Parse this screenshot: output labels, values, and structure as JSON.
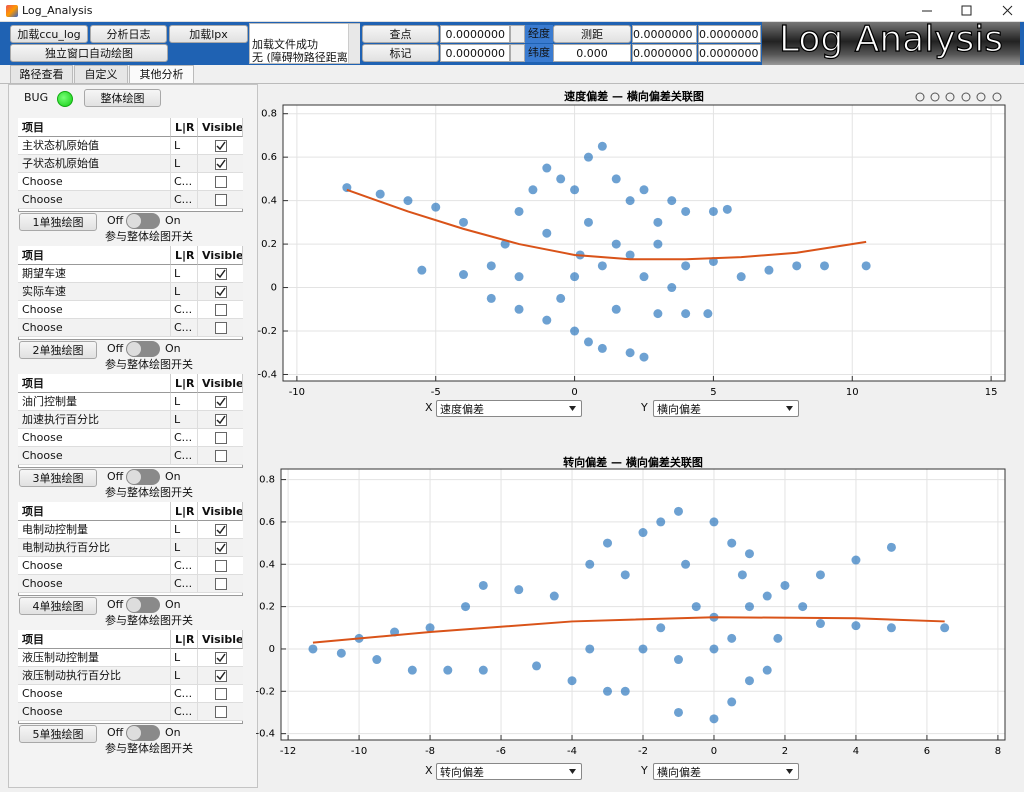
{
  "window": {
    "title": "Log_Analysis"
  },
  "toolbar": {
    "buttons": [
      "加载ccu_log",
      "分析日志",
      "加载lpx",
      "独立窗口自动绘图"
    ],
    "status": [
      "加载文件成功",
      "无 (障碍物路径距离"
    ],
    "query": {
      "label": "查点",
      "value": "0.0000000"
    },
    "mark": {
      "label": "标记",
      "value": "0.0000000"
    },
    "lon_label": "经度",
    "lat_label": "纬度",
    "measure": {
      "label": "测距",
      "value": "0.000"
    },
    "cells": [
      "0.0000000",
      "0.0000000",
      "0.0000000",
      "0.0000000"
    ],
    "logo": "Log Analysis"
  },
  "tabs": {
    "items": [
      "路径查看",
      "自定义",
      "其他分析"
    ],
    "selected": 2
  },
  "panel": {
    "bug_label": "BUG",
    "overall_button": "整体绘图",
    "groups": [
      {
        "headers": [
          "项目",
          "L|R",
          "Visible"
        ],
        "rows": [
          [
            "主状态机原始值",
            "L",
            true
          ],
          [
            "子状态机原始值",
            "L",
            true
          ],
          [
            "Choose",
            "C...",
            false
          ],
          [
            "Choose",
            "C...",
            false
          ]
        ],
        "button": "1单独绘图",
        "switch_off": "Off",
        "switch_on": "On",
        "caption": "参与整体绘图开关"
      },
      {
        "headers": [
          "项目",
          "L|R",
          "Visible"
        ],
        "rows": [
          [
            "期望车速",
            "L",
            true
          ],
          [
            "实际车速",
            "L",
            true
          ],
          [
            "Choose",
            "C...",
            false
          ],
          [
            "Choose",
            "C...",
            false
          ]
        ],
        "button": "2单独绘图",
        "switch_off": "Off",
        "switch_on": "On",
        "caption": "参与整体绘图开关"
      },
      {
        "headers": [
          "项目",
          "L|R",
          "Visible"
        ],
        "rows": [
          [
            "油门控制量",
            "L",
            true
          ],
          [
            "加速执行百分比",
            "L",
            true
          ],
          [
            "Choose",
            "C...",
            false
          ],
          [
            "Choose",
            "C...",
            false
          ]
        ],
        "button": "3单独绘图",
        "switch_off": "Off",
        "switch_on": "On",
        "caption": "参与整体绘图开关"
      },
      {
        "headers": [
          "项目",
          "L|R",
          "Visible"
        ],
        "rows": [
          [
            "电制动控制量",
            "L",
            true
          ],
          [
            "电制动执行百分比",
            "L",
            true
          ],
          [
            "Choose",
            "C...",
            false
          ],
          [
            "Choose",
            "C...",
            false
          ]
        ],
        "button": "4单独绘图",
        "switch_off": "Off",
        "switch_on": "On",
        "caption": "参与整体绘图开关"
      },
      {
        "headers": [
          "项目",
          "L|R",
          "Visible"
        ],
        "rows": [
          [
            "液压制动控制量",
            "L",
            true
          ],
          [
            "液压制动执行百分比",
            "L",
            true
          ],
          [
            "Choose",
            "C...",
            false
          ],
          [
            "Choose",
            "C...",
            false
          ]
        ],
        "button": "5单独绘图",
        "switch_off": "Off",
        "switch_on": "On",
        "caption": "参与整体绘图开关"
      }
    ]
  },
  "chart_data": [
    {
      "type": "scatter",
      "title": "速度偏差 — 横向偏差关联图",
      "xlim": [
        -10.5,
        15.5
      ],
      "ylim": [
        -0.43,
        0.84
      ],
      "xticks": [
        -10,
        -5,
        0,
        5,
        10,
        15
      ],
      "yticks": [
        -0.4,
        -0.2,
        0,
        0.2,
        0.4,
        0.6,
        0.8
      ],
      "grid": true,
      "x_select": {
        "label": "X",
        "value": "速度偏差"
      },
      "y_select": {
        "label": "Y",
        "value": "横向偏差"
      },
      "series": [
        {
          "type": "scatter",
          "color": "#1f6fba",
          "x": [
            -8.2,
            -7,
            -6,
            -5,
            -4,
            -5.5,
            -4,
            -3,
            -2.5,
            -2,
            -1.5,
            -1,
            -0.5,
            0,
            0.5,
            1,
            1.5,
            2,
            2.5,
            3,
            3.5,
            4,
            5,
            5.5,
            -3,
            -2,
            -1,
            0,
            0.5,
            1,
            2,
            2.5,
            3,
            4,
            4.8,
            1.5,
            0,
            1,
            2,
            3,
            4,
            5,
            6,
            7,
            8,
            9,
            10.5,
            -1,
            0.5,
            -2,
            1.5,
            2.5,
            3.5,
            -0.5,
            0.2
          ],
          "values": [
            0.46,
            0.43,
            0.4,
            0.37,
            0.3,
            0.08,
            0.06,
            0.1,
            0.2,
            0.35,
            0.45,
            0.55,
            0.5,
            0.45,
            0.6,
            0.65,
            0.5,
            0.4,
            0.45,
            0.3,
            0.4,
            0.35,
            0.35,
            0.36,
            -0.05,
            -0.1,
            -0.15,
            -0.2,
            -0.25,
            -0.28,
            -0.3,
            -0.32,
            -0.12,
            -0.12,
            -0.12,
            -0.1,
            0.05,
            0.1,
            0.15,
            0.2,
            0.1,
            0.12,
            0.05,
            0.08,
            0.1,
            0.1,
            0.1,
            0.25,
            0.3,
            0.05,
            0.2,
            0.05,
            0.0,
            -0.05,
            0.15
          ]
        },
        {
          "type": "line",
          "color": "#d95319",
          "x": [
            -8.2,
            -6,
            -4,
            -2,
            0,
            2,
            4,
            6,
            8,
            10.5
          ],
          "values": [
            0.45,
            0.35,
            0.27,
            0.2,
            0.15,
            0.13,
            0.13,
            0.14,
            0.16,
            0.21
          ]
        }
      ]
    },
    {
      "type": "scatter",
      "title": "转向偏差 — 横向偏差关联图",
      "xlim": [
        -12.2,
        8.2
      ],
      "ylim": [
        -0.43,
        0.85
      ],
      "xticks": [
        -12,
        -10,
        -8,
        -6,
        -4,
        -2,
        0,
        2,
        4,
        6,
        8
      ],
      "yticks": [
        -0.4,
        -0.2,
        0,
        0.2,
        0.4,
        0.6,
        0.8
      ],
      "grid": true,
      "x_select": {
        "label": "X",
        "value": "转向偏差"
      },
      "y_select": {
        "label": "Y",
        "value": "横向偏差"
      },
      "series": [
        {
          "type": "scatter",
          "color": "#1f6fba",
          "x": [
            -11.3,
            -10.5,
            -9.5,
            -8.5,
            -7.5,
            -6.5,
            -10,
            -9,
            -8,
            -7,
            -6.5,
            -5.5,
            -4.5,
            -5,
            -4,
            -3,
            -2.5,
            -3.5,
            -3,
            -2,
            -1.5,
            -1,
            0,
            0.5,
            1,
            -1,
            0,
            0.5,
            1,
            1.5,
            -1.5,
            -0.5,
            0,
            0.5,
            1,
            1.5,
            2,
            2.5,
            3,
            4,
            5,
            6.5,
            3,
            4,
            5,
            -2,
            -1,
            0,
            1.8,
            -2.5,
            -0.8,
            0.8,
            -3.5
          ],
          "values": [
            0.0,
            -0.02,
            -0.05,
            -0.1,
            -0.1,
            -0.1,
            0.05,
            0.08,
            0.1,
            0.2,
            0.3,
            0.28,
            0.25,
            -0.08,
            -0.15,
            -0.2,
            -0.2,
            0.4,
            0.5,
            0.55,
            0.6,
            0.65,
            0.6,
            0.5,
            0.45,
            -0.3,
            -0.33,
            -0.25,
            -0.15,
            -0.1,
            0.1,
            0.2,
            0.15,
            0.05,
            0.2,
            0.25,
            0.3,
            0.2,
            0.12,
            0.11,
            0.1,
            0.1,
            0.35,
            0.42,
            0.48,
            0.0,
            -0.05,
            0.0,
            0.05,
            0.35,
            0.4,
            0.35,
            0.0
          ]
        },
        {
          "type": "line",
          "color": "#d95319",
          "x": [
            -11.3,
            -8,
            -4,
            0,
            4,
            6.5
          ],
          "values": [
            0.03,
            0.08,
            0.13,
            0.15,
            0.145,
            0.13
          ]
        }
      ]
    }
  ]
}
